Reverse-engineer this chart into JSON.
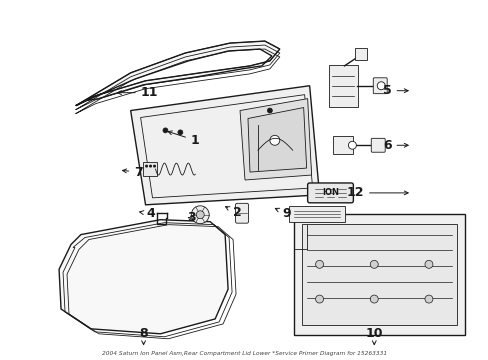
{
  "title": "2004 Saturn Ion Panel Asm,Rear Compartment Lid Lower *Service Primer Diagram for 15263331",
  "background_color": "#ffffff",
  "line_color": "#1a1a1a",
  "fig_width": 4.89,
  "fig_height": 3.6,
  "dpi": 100
}
